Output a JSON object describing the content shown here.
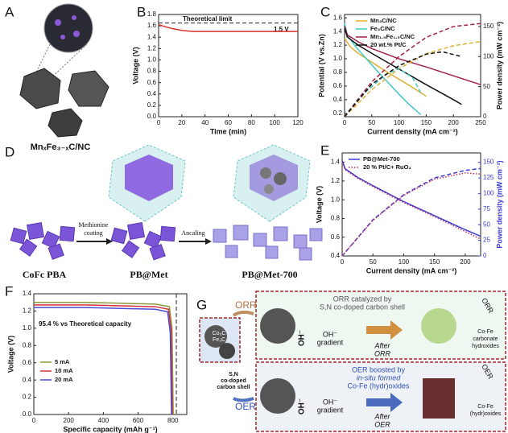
{
  "chart_data": [
    {
      "type": "line",
      "label": "B",
      "xlabel": "Time (min)",
      "ylabel": "Voltage (V)",
      "xlim": [
        0,
        120
      ],
      "xticks": [
        0,
        20,
        40,
        60,
        80,
        100,
        120
      ],
      "ylim": [
        0,
        1.8
      ],
      "yticks": [
        {
          "value": 0,
          "label": "0.0"
        },
        0.2,
        0.4,
        0.6,
        0.8,
        {
          "value": 1,
          "label": "1.0"
        },
        1.2,
        1.4,
        1.6,
        1.8
      ],
      "reference_y": 1.65,
      "annotations": [
        "Theoretical limit",
        "1.5 V"
      ],
      "series": [
        {
          "color": "#d9322b",
          "style": "solid",
          "x": [
            0,
            5,
            10,
            15,
            20,
            25,
            30,
            40,
            60,
            80,
            100,
            120
          ],
          "values": [
            1.62,
            1.59,
            1.56,
            1.54,
            1.52,
            1.51,
            1.5,
            1.5,
            1.5,
            1.5,
            1.5,
            1.5
          ]
        }
      ]
    },
    {
      "type": "line",
      "label": "C",
      "xlabel": "Current density (mA cm⁻²)",
      "ylabel": "Potential (V vs.Zn)",
      "y2label": "Power density (mW cm⁻²)",
      "xlim": [
        0,
        250
      ],
      "xticks": [
        0,
        50,
        100,
        150,
        200,
        250
      ],
      "ylim": [
        0.15,
        1.65
      ],
      "yticks": [
        0.2,
        0.4,
        0.6,
        0.8,
        {
          "value": 1,
          "label": "1.0"
        },
        1.2,
        1.4,
        1.6
      ],
      "y2lim": [
        0,
        170
      ],
      "y2ticks": [
        0,
        50,
        100,
        150
      ],
      "legend": "upper right",
      "series": [
        {
          "name": "Mn₃C/NC",
          "color": "#e0b030",
          "style": "solid",
          "x": [
            0,
            10,
            25,
            50,
            75,
            100,
            125,
            150
          ],
          "values": [
            1.3,
            1.18,
            1.08,
            0.95,
            0.82,
            0.7,
            0.58,
            0.45
          ]
        },
        {
          "name": "Fe₃C/NC",
          "color": "#40c8c8",
          "style": "solid",
          "x": [
            0,
            5,
            20,
            40,
            60,
            80,
            100,
            120,
            140
          ],
          "values": [
            1.52,
            1.35,
            1.18,
            1.0,
            0.82,
            0.65,
            0.48,
            0.32,
            0.18
          ]
        },
        {
          "name": "Mn₁.₅Fe₁.₅C/NC",
          "color": "#a0204a",
          "style": "solid",
          "x": [
            0,
            5,
            25,
            50,
            100,
            150,
            200,
            250
          ],
          "values": [
            1.48,
            1.35,
            1.25,
            1.15,
            1.0,
            0.88,
            0.75,
            0.62
          ]
        },
        {
          "name": "20 wt.% Pt/C",
          "color": "#111111",
          "style": "solid",
          "x": [
            0,
            5,
            25,
            50,
            100,
            150,
            200,
            215
          ],
          "values": [
            1.45,
            1.32,
            1.2,
            1.08,
            0.85,
            0.62,
            0.4,
            0.33
          ]
        },
        {
          "color": "#e0b030",
          "style": "dashed",
          "axis": "y2",
          "x": [
            0,
            50,
            100,
            150,
            200,
            250
          ],
          "values": [
            0,
            45,
            80,
            105,
            118,
            125
          ]
        },
        {
          "color": "#40c8c8",
          "style": "dashed",
          "axis": "y2",
          "x": [
            0,
            25,
            50,
            75,
            100,
            125,
            140
          ],
          "values": [
            0,
            30,
            50,
            70,
            80,
            65,
            40
          ]
        },
        {
          "color": "#a0204a",
          "style": "dashed",
          "axis": "y2",
          "x": [
            0,
            50,
            100,
            150,
            200,
            250
          ],
          "values": [
            0,
            58,
            100,
            132,
            150,
            155
          ]
        },
        {
          "color": "#111111",
          "style": "dashed",
          "axis": "y2",
          "x": [
            0,
            50,
            100,
            150,
            180,
            215
          ],
          "values": [
            0,
            54,
            85,
            104,
            108,
            100
          ]
        }
      ]
    },
    {
      "type": "line",
      "label": "E",
      "xlabel": "Current density (mA cm⁻²)",
      "ylabel": "Voltage (V)",
      "y2label": "Power density (mW cm⁻²)",
      "xlim": [
        0,
        225
      ],
      "xticks": [
        0,
        50,
        100,
        150,
        200
      ],
      "ylim": [
        0.4,
        1.5
      ],
      "yticks": [
        0.4,
        0.6,
        0.8,
        {
          "value": 1,
          "label": "1.0"
        },
        1.2,
        1.4
      ],
      "y2lim": [
        0,
        165
      ],
      "y2ticks": [
        0,
        25,
        50,
        75,
        100,
        125,
        150
      ],
      "y2_color": "#3a3ad0",
      "legend": "upper left",
      "series": [
        {
          "name": "PB@Met-700",
          "color": "#3a3ad0",
          "style": "solid",
          "x": [
            0,
            5,
            25,
            50,
            100,
            150,
            200,
            225
          ],
          "values": [
            1.42,
            1.33,
            1.24,
            1.15,
            0.98,
            0.83,
            0.68,
            0.61
          ]
        },
        {
          "name": "20 % Pt/C+ RuO₂",
          "color": "#c03060",
          "style": "dotted",
          "x": [
            0,
            5,
            25,
            50,
            100,
            150,
            200,
            225
          ],
          "values": [
            1.4,
            1.32,
            1.23,
            1.14,
            0.97,
            0.82,
            0.66,
            0.58
          ]
        },
        {
          "color": "#3a3ad0",
          "style": "dashed",
          "axis": "y2",
          "x": [
            0,
            50,
            100,
            150,
            200,
            225
          ],
          "values": [
            0,
            58,
            98,
            125,
            137,
            140
          ]
        },
        {
          "color": "#c03060",
          "style": "dotted",
          "axis": "y2",
          "x": [
            0,
            50,
            100,
            150,
            200,
            225
          ],
          "values": [
            0,
            57,
            97,
            123,
            133,
            131
          ]
        }
      ]
    },
    {
      "type": "line",
      "label": "F",
      "xlabel": "Specific capacity (mAh g⁻¹)",
      "ylabel": "Voltage (V)",
      "xlim": [
        0,
        880
      ],
      "xticks": [
        0,
        200,
        400,
        600,
        800
      ],
      "ylim": [
        0,
        1.4
      ],
      "yticks": [
        {
          "value": 0,
          "label": "0.0"
        },
        0.2,
        0.4,
        0.6,
        0.8,
        {
          "value": 1,
          "label": "1.0"
        },
        1.2,
        1.4
      ],
      "reference_x": 820,
      "annotations": [
        "95.4 % vs Theoretical capacity"
      ],
      "legend": "center left",
      "series": [
        {
          "name": "5 mA",
          "color": "#8a9a3a",
          "style": "solid",
          "x": [
            0,
            100,
            300,
            500,
            700,
            780,
            795,
            802
          ],
          "values": [
            1.3,
            1.3,
            1.3,
            1.29,
            1.28,
            1.25,
            1.0,
            0
          ]
        },
        {
          "name": "10 mA",
          "color": "#d03040",
          "style": "solid",
          "x": [
            0,
            100,
            300,
            500,
            700,
            775,
            790,
            797
          ],
          "values": [
            1.27,
            1.27,
            1.27,
            1.26,
            1.25,
            1.22,
            0.98,
            0
          ]
        },
        {
          "name": "20 mA",
          "color": "#4a4ad8",
          "style": "solid",
          "x": [
            0,
            100,
            300,
            500,
            700,
            770,
            785,
            792
          ],
          "values": [
            1.24,
            1.24,
            1.24,
            1.23,
            1.22,
            1.19,
            0.95,
            0
          ]
        }
      ]
    }
  ],
  "panel_a": {
    "label": "A",
    "caption": "MnₓFe₃₋ₓC/NC"
  },
  "panel_d": {
    "label": "D",
    "steps": [
      "CoFc PBA",
      "PB@Met",
      "PB@Met-700"
    ],
    "arrow1": [
      "Methionine",
      "coating"
    ],
    "arrow2": "Ancaling"
  },
  "panel_g": {
    "label": "G",
    "inset": [
      "Co₃C",
      "Fe₃C"
    ],
    "shell_label": [
      "S,N",
      "co-doped",
      "carbon shell"
    ],
    "orr": "ORR",
    "oer": "OER",
    "orr_title": [
      "ORR catalyzed by",
      "S,N co-doped carbon shell"
    ],
    "oh_gradient": [
      "OH⁻",
      "gradient"
    ],
    "oh": "OH⁻",
    "after_orr": [
      "After",
      "ORR"
    ],
    "orr_side": "ORR",
    "orr_product": [
      "Co-Fe",
      "carbonate",
      "hydroxides"
    ],
    "oer_title": [
      "OER boosted by",
      "in-situ formed",
      "Co-Fe (hydr)oxides"
    ],
    "oh_gradient_2": [
      "OH⁻",
      "gradient"
    ],
    "oh_2": "OH⁻",
    "after_oer": [
      "After",
      "OER"
    ],
    "oer_side": "OER",
    "oer_product": [
      "Co-Fe",
      "(hydr)oxides"
    ]
  }
}
